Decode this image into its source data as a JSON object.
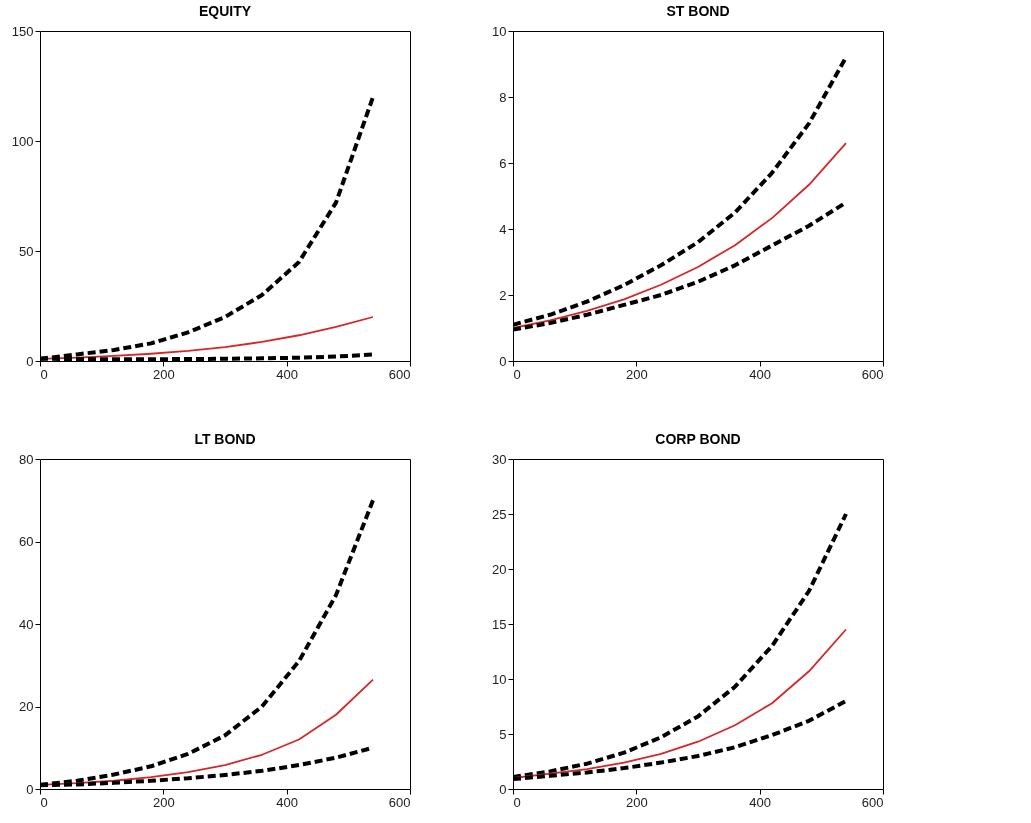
{
  "chart_data": [
    {
      "type": "line",
      "title": "EQUITY",
      "x": [
        0,
        60,
        120,
        180,
        240,
        300,
        360,
        420,
        480,
        540
      ],
      "xlim": [
        0,
        600
      ],
      "xticks": [
        0,
        200,
        400,
        600
      ],
      "ylim": [
        0,
        150
      ],
      "yticks": [
        0,
        50,
        100,
        150
      ],
      "grid": false,
      "legend": false,
      "series": [
        {
          "color": "#000000",
          "line_style": "dashed",
          "values": [
            1,
            3,
            5,
            8,
            13,
            20,
            30,
            45,
            72,
            120
          ]
        },
        {
          "color": "#d62728",
          "line_style": "solid",
          "values": [
            1,
            1.5,
            2.3,
            3.3,
            4.6,
            6.3,
            8.7,
            11.7,
            15.5,
            20
          ]
        },
        {
          "color": "#000000",
          "line_style": "dashed",
          "values": [
            1,
            0.9,
            0.8,
            0.8,
            0.9,
            1,
            1.2,
            1.5,
            2,
            3
          ]
        }
      ]
    },
    {
      "type": "line",
      "title": "ST BOND",
      "x": [
        0,
        60,
        120,
        180,
        240,
        300,
        360,
        420,
        480,
        540
      ],
      "xlim": [
        0,
        600
      ],
      "xticks": [
        0,
        200,
        400,
        600
      ],
      "ylim": [
        0,
        10
      ],
      "yticks": [
        0,
        2,
        4,
        6,
        8,
        10
      ],
      "grid": false,
      "legend": false,
      "series": [
        {
          "color": "#000000",
          "line_style": "dashed",
          "values": [
            1.1,
            1.4,
            1.8,
            2.3,
            2.9,
            3.6,
            4.5,
            5.7,
            7.2,
            9.2
          ]
        },
        {
          "color": "#d62728",
          "line_style": "solid",
          "values": [
            1,
            1.23,
            1.52,
            1.87,
            2.31,
            2.85,
            3.51,
            4.33,
            5.34,
            6.6
          ]
        },
        {
          "color": "#000000",
          "line_style": "dashed",
          "values": [
            0.95,
            1.15,
            1.4,
            1.7,
            2,
            2.4,
            2.9,
            3.5,
            4.1,
            4.8
          ]
        }
      ]
    },
    {
      "type": "line",
      "title": "LT BOND",
      "x": [
        0,
        60,
        120,
        180,
        240,
        300,
        360,
        420,
        480,
        540
      ],
      "xlim": [
        0,
        600
      ],
      "xticks": [
        0,
        200,
        400,
        600
      ],
      "ylim": [
        0,
        80
      ],
      "yticks": [
        0,
        20,
        40,
        60,
        80
      ],
      "grid": false,
      "legend": false,
      "series": [
        {
          "color": "#000000",
          "line_style": "dashed",
          "values": [
            1,
            2,
            3.5,
            5.5,
            8.5,
            13,
            20,
            31,
            47,
            70
          ]
        },
        {
          "color": "#d62728",
          "line_style": "solid",
          "values": [
            1,
            1.4,
            2,
            2.9,
            4.1,
            5.8,
            8.3,
            12,
            18,
            26.5
          ]
        },
        {
          "color": "#000000",
          "line_style": "dashed",
          "values": [
            0.9,
            1.1,
            1.5,
            2,
            2.6,
            3.4,
            4.4,
            5.8,
            7.6,
            10
          ]
        }
      ]
    },
    {
      "type": "line",
      "title": "CORP BOND",
      "x": [
        0,
        60,
        120,
        180,
        240,
        300,
        360,
        420,
        480,
        540
      ],
      "xlim": [
        0,
        600
      ],
      "xticks": [
        0,
        200,
        400,
        600
      ],
      "ylim": [
        0,
        30
      ],
      "yticks": [
        0,
        5,
        10,
        15,
        20,
        25,
        30
      ],
      "grid": false,
      "legend": false,
      "series": [
        {
          "color": "#000000",
          "line_style": "dashed",
          "values": [
            1.1,
            1.6,
            2.3,
            3.3,
            4.7,
            6.6,
            9.3,
            13,
            18,
            25
          ]
        },
        {
          "color": "#d62728",
          "line_style": "solid",
          "values": [
            1,
            1.4,
            1.8,
            2.4,
            3.2,
            4.3,
            5.8,
            7.8,
            10.7,
            14.5
          ]
        },
        {
          "color": "#000000",
          "line_style": "dashed",
          "values": [
            0.9,
            1.2,
            1.5,
            1.9,
            2.4,
            3,
            3.8,
            4.9,
            6.2,
            8
          ]
        }
      ]
    }
  ]
}
